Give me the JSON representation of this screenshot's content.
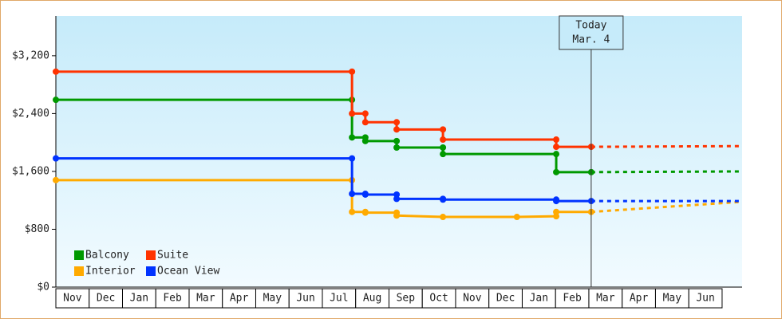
{
  "chart_data": {
    "type": "step-line",
    "categories": [
      "Nov",
      "Dec",
      "Jan",
      "Feb",
      "Mar",
      "Apr",
      "May",
      "Jun",
      "Jul",
      "Aug",
      "Sep",
      "Oct",
      "Nov",
      "Dec",
      "Jan",
      "Feb",
      "Mar",
      "Apr",
      "May",
      "Jun"
    ],
    "xlim": [
      0,
      20.6
    ],
    "ylim": [
      0,
      3750
    ],
    "yticks": [
      {
        "value": 0,
        "label": "$0"
      },
      {
        "value": 800,
        "label": "$800"
      },
      {
        "value": 1600,
        "label": "$1,600"
      },
      {
        "value": 2400,
        "label": "$2,400"
      },
      {
        "value": 3200,
        "label": "$3,200"
      }
    ],
    "grid": false,
    "legend": "bottom-left",
    "annotation": {
      "x": 16.07,
      "lines": [
        "Today",
        "Mar. 4"
      ]
    },
    "series": [
      {
        "name": "Balcony",
        "color": "#009900",
        "x": [
          0,
          8.89,
          8.89,
          9.29,
          9.29,
          10.23,
          10.23,
          11.62,
          11.62,
          15.02,
          15.02,
          16.07
        ],
        "values": [
          2590,
          2590,
          2070,
          2070,
          2020,
          2020,
          1930,
          1930,
          1840,
          1840,
          1590,
          1590
        ],
        "projection": {
          "x": [
            16.07,
            20.6
          ],
          "values": [
            1590,
            1600
          ]
        }
      },
      {
        "name": "Suite",
        "color": "#ff3300",
        "x": [
          0,
          8.89,
          8.89,
          9.29,
          9.29,
          10.23,
          10.23,
          11.62,
          11.62,
          15.02,
          15.02,
          16.07
        ],
        "values": [
          2980,
          2980,
          2400,
          2400,
          2280,
          2280,
          2180,
          2180,
          2040,
          2040,
          1940,
          1940
        ],
        "projection": {
          "x": [
            16.07,
            20.6
          ],
          "values": [
            1940,
            1950
          ]
        }
      },
      {
        "name": "Interior",
        "color": "#ffaa00",
        "x": [
          0,
          8.89,
          8.89,
          9.29,
          9.29,
          10.23,
          10.23,
          11.62,
          13.84,
          15.02,
          15.02,
          16.07
        ],
        "values": [
          1480,
          1480,
          1040,
          1040,
          1030,
          1030,
          990,
          970,
          970,
          980,
          1040,
          1040
        ],
        "projection": {
          "x": [
            16.07,
            20.6
          ],
          "values": [
            1040,
            1180
          ]
        }
      },
      {
        "name": "Ocean View",
        "color": "#0033ff",
        "x": [
          0,
          8.89,
          8.89,
          9.29,
          9.29,
          10.23,
          10.23,
          11.62,
          11.62,
          15.02,
          15.02,
          16.07
        ],
        "values": [
          1780,
          1780,
          1290,
          1290,
          1280,
          1280,
          1220,
          1220,
          1210,
          1210,
          1190,
          1190
        ],
        "projection": {
          "x": [
            16.07,
            20.6
          ],
          "values": [
            1190,
            1190
          ]
        }
      }
    ]
  }
}
